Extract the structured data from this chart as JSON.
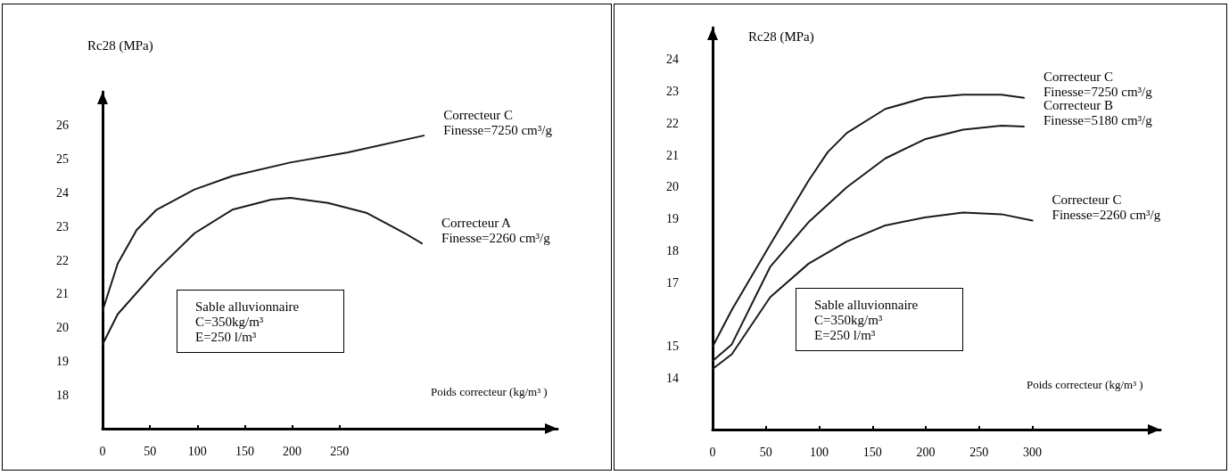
{
  "chart_data": [
    {
      "type": "line",
      "ylabel": "Rc28 (MPa)",
      "xlabel": "Poids correcteur (kg/m³ )",
      "xlim": [
        0,
        480
      ],
      "xticks": [
        0,
        50,
        100,
        150,
        200,
        250
      ],
      "ylim": [
        17,
        27
      ],
      "yticks": [
        18,
        19,
        20,
        21,
        22,
        23,
        24,
        25,
        26
      ],
      "grid": false,
      "legend": false,
      "marker": "none",
      "line_style": "solid",
      "annotations": [
        "Sable alluvionnaire\nC=350kg/m³\nE=250 l/m³"
      ],
      "series": [
        {
          "name": "Correcteur C\nFinesse=7250 cm³/g",
          "color": "#1a1a1a",
          "x": [
            0,
            16,
            36,
            57,
            97,
            137,
            198,
            259,
            339
          ],
          "values": [
            20.5,
            21.9,
            22.9,
            23.5,
            24.1,
            24.5,
            24.9,
            25.2,
            25.7
          ]
        },
        {
          "name": "Correcteur A\nFinesse=2260 cm³/g",
          "color": "#1a1a1a",
          "x": [
            0,
            16,
            57,
            97,
            137,
            178,
            198,
            238,
            279,
            319,
            337
          ],
          "values": [
            19.5,
            20.4,
            21.7,
            22.8,
            23.5,
            23.8,
            23.85,
            23.7,
            23.4,
            22.8,
            22.5
          ]
        }
      ]
    },
    {
      "type": "line",
      "ylabel": "Rc28 (MPa)",
      "xlabel": "Poids correcteur (kg/m³ )",
      "xlim": [
        0,
        420
      ],
      "xticks": [
        0,
        50,
        100,
        150,
        200,
        250,
        300
      ],
      "ylim": [
        12.4,
        25
      ],
      "yticks": [
        14,
        15,
        17,
        18,
        19,
        20,
        21,
        22,
        23,
        24
      ],
      "grid": false,
      "legend": false,
      "marker": "none",
      "line_style": "solid",
      "annotations": [
        "Sable alluvionnaire\nC=350kg/m³\nE=250 l/m³"
      ],
      "series": [
        {
          "name": "Correcteur C\nFinesse=7250 cm³/g",
          "color": "#1a1a1a",
          "x": [
            0,
            18,
            54,
            90,
            108,
            126,
            162,
            199,
            235,
            271,
            292
          ],
          "values": [
            15.0,
            16.15,
            18.2,
            20.2,
            21.1,
            21.7,
            22.45,
            22.8,
            22.9,
            22.9,
            22.8
          ]
        },
        {
          "name": "Correcteur B\nFinesse=5180 cm³/g",
          "color": "#1a1a1a",
          "x": [
            0,
            18,
            54,
            90,
            126,
            162,
            199,
            235,
            271,
            292
          ],
          "values": [
            14.55,
            15.07,
            17.5,
            18.9,
            20.0,
            20.9,
            21.5,
            21.8,
            21.93,
            21.9
          ]
        },
        {
          "name": "Correcteur C\nFinesse=2260 cm³/g",
          "color": "#1a1a1a",
          "x": [
            0,
            18,
            54,
            90,
            126,
            162,
            199,
            235,
            271,
            300
          ],
          "values": [
            14.3,
            14.76,
            16.55,
            17.6,
            18.3,
            18.8,
            19.05,
            19.2,
            19.15,
            18.95
          ]
        }
      ]
    }
  ]
}
